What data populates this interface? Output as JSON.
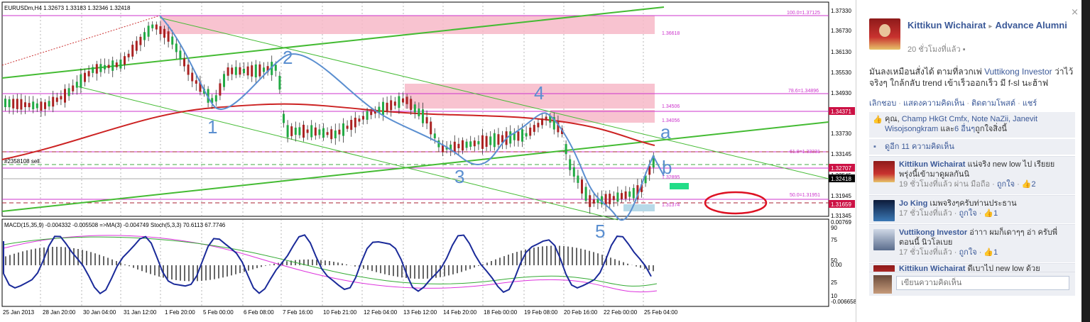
{
  "chart": {
    "symbol_line": "EURUSDm,H4  1.32673 1.33183 1.32346 1.32418",
    "order_label": "#2358108 sell",
    "price_axis": [
      "1.37330",
      "1.36730",
      "1.36130",
      "1.35530",
      "1.34930",
      "1.34330",
      "1.33730",
      "1.33145",
      "1.32545",
      "1.31945",
      "1.31345"
    ],
    "price_tags": [
      "1.34371",
      "1.32707",
      "1.32418",
      "1.31659"
    ],
    "fib_labels": [
      "100.0=1.37125",
      "1.36618",
      "78.6=1.34896",
      "1.34506",
      "1.34056",
      "61.8=1.33331",
      "1.32895",
      "50.0=1.31951",
      "1.31374"
    ],
    "handwriting": [
      "1",
      "2",
      "3",
      "4",
      "5",
      "a",
      "b"
    ],
    "macd_label": "MACD(15,35,9) -0.004332 -0.005508  =>MA(3) -0.004749  Stoch(5,3,3) 70.6113 67.7746",
    "macd_axis": [
      "0.00769",
      "90",
      "75",
      "50",
      "0.00",
      "25",
      "10",
      "-0.006658"
    ],
    "time_axis": [
      "25 Jan 2013",
      "28 Jan 20:00",
      "30 Jan 04:00",
      "31 Jan 12:00",
      "1 Feb 20:00",
      "5 Feb 00:00",
      "6 Feb 08:00",
      "7 Feb 16:00",
      "10 Feb 21:00",
      "12 Feb 04:00",
      "13 Feb 12:00",
      "14 Feb 20:00",
      "18 Feb 00:00",
      "19 Feb 08:00",
      "20 Feb 16:00",
      "22 Feb 00:00",
      "25 Feb 04:00"
    ],
    "colors": {
      "fib": "#cc33cc",
      "ma": "#cc2222",
      "trend": "#44bb33",
      "hand": "#5b8fd0",
      "zone": "#f7b8c8",
      "bull": "#22aa44",
      "bear": "#aa2222",
      "tag": "#cc1144"
    }
  },
  "fb": {
    "close": "×",
    "author": "Kittikun Wichairat",
    "arrow": "▸",
    "group": "Advance Alumni",
    "time": "20 ชั่วโมงที่แล้ว",
    "text_a": "มันลงเหมือนสั่งได้ ตามที่ลวกเพ่ ",
    "text_link": "Vuttikong Investor",
    "text_b": " ว่าไว้จริงๆ ใกล้กลับ trend เข้าเร็วออกเร็ว มี f-sl นะฮ้าฟ",
    "actions": [
      "เลิกชอบ",
      "แสดงความคิดเห็น",
      "ติดตามโพสต์",
      "แชร์"
    ],
    "likes_a": "คุณ, ",
    "likes_names": "Champ HkGt Cmfx, Note NaZii, Janevit Wisojsongkram",
    "likes_b": " และ",
    "likes_more": "6 อื่นๆ",
    "likes_c": "ถูกใจสิ่งนี้",
    "more_comments": "ดูอีก 11 ความคิดเห็น",
    "comments": [
      {
        "name": "Kittikun Wichairat",
        "text": " แน่จริง new low ไป เรียยย พรุ่งนี้เข้ามาดูผลกันนิ",
        "meta_a": "19 ชั่วโมงที่แล้ว ผ่าน มือถือ · ",
        "like": "ถูกใจ",
        "count": "2"
      },
      {
        "name": "Jo King",
        "text": " เมพจริงๆครับท่านประธาน",
        "meta_a": "17 ชั่วโมงที่แล้ว · ",
        "like": "ถูกใจ",
        "count": "1"
      },
      {
        "name": "Vuttikong Investor",
        "text": " อ่าาา ผมก็เดาๆๆ อ่า ครับพี่ ตอนนี้ นิวโลเบย",
        "meta_a": "17 ชั่วโมงที่แล้ว · ",
        "like": "ถูกใจ",
        "count": "1"
      },
      {
        "name": "Kittikun Wichairat",
        "text": " ดีเบาไป new low ด้วย",
        "meta_a": "",
        "like": "",
        "count": ""
      }
    ],
    "write_placeholder": "เขียนความคิดเห็น"
  }
}
